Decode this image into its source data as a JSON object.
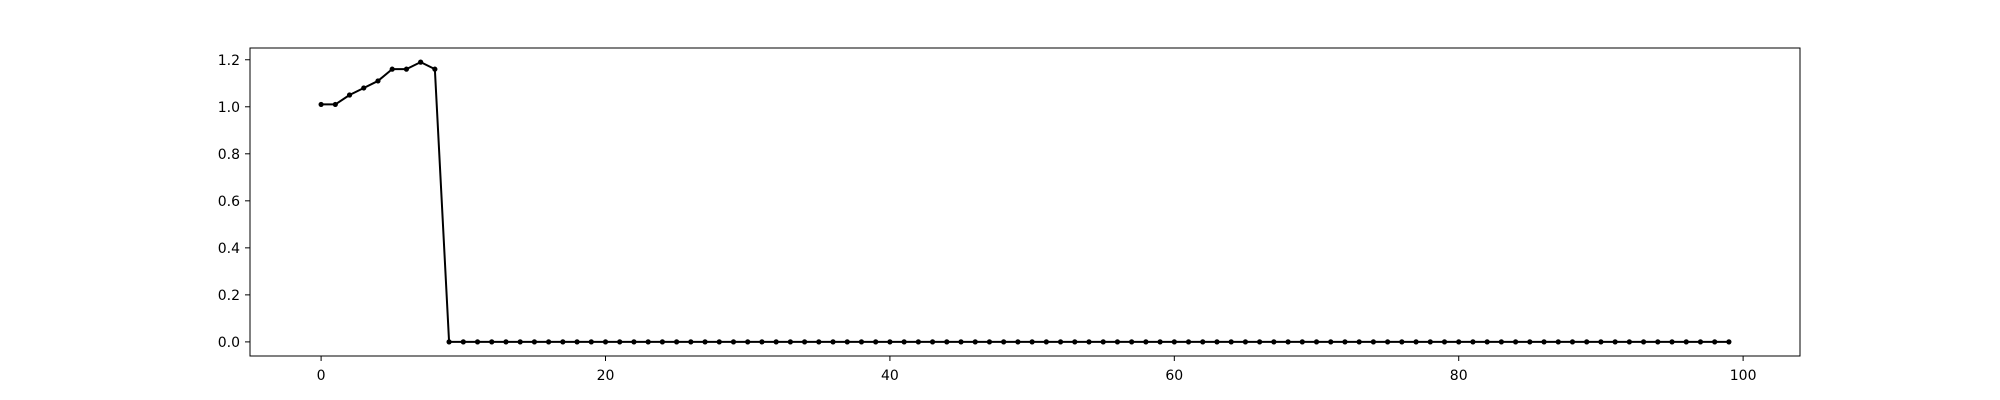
{
  "chart_data": {
    "type": "line",
    "title": "",
    "xlabel": "",
    "ylabel": "",
    "xlim": [
      -5,
      104
    ],
    "ylim": [
      -0.06,
      1.25
    ],
    "grid": false,
    "x_ticks": [
      0,
      20,
      40,
      60,
      80,
      100
    ],
    "x_tick_labels": [
      "0",
      "20",
      "40",
      "60",
      "80",
      "100"
    ],
    "y_ticks": [
      0.0,
      0.2,
      0.4,
      0.6,
      0.8,
      1.0,
      1.2
    ],
    "y_tick_labels": [
      "0.0",
      "0.2",
      "0.4",
      "0.6",
      "0.8",
      "1.0",
      "1.2"
    ],
    "series": [
      {
        "color": "#000000",
        "marker": "circle",
        "x": [
          0,
          1,
          2,
          3,
          4,
          5,
          6,
          7,
          8,
          9,
          10,
          11,
          12,
          13,
          14,
          15,
          16,
          17,
          18,
          19,
          20,
          21,
          22,
          23,
          24,
          25,
          26,
          27,
          28,
          29,
          30,
          31,
          32,
          33,
          34,
          35,
          36,
          37,
          38,
          39,
          40,
          41,
          42,
          43,
          44,
          45,
          46,
          47,
          48,
          49,
          50,
          51,
          52,
          53,
          54,
          55,
          56,
          57,
          58,
          59,
          60,
          61,
          62,
          63,
          64,
          65,
          66,
          67,
          68,
          69,
          70,
          71,
          72,
          73,
          74,
          75,
          76,
          77,
          78,
          79,
          80,
          81,
          82,
          83,
          84,
          85,
          86,
          87,
          88,
          89,
          90,
          91,
          92,
          93,
          94,
          95,
          96,
          97,
          98,
          99
        ],
        "y": [
          1.01,
          1.01,
          1.05,
          1.08,
          1.11,
          1.16,
          1.16,
          1.19,
          1.16,
          0,
          0,
          0,
          0,
          0,
          0,
          0,
          0,
          0,
          0,
          0,
          0,
          0,
          0,
          0,
          0,
          0,
          0,
          0,
          0,
          0,
          0,
          0,
          0,
          0,
          0,
          0,
          0,
          0,
          0,
          0,
          0,
          0,
          0,
          0,
          0,
          0,
          0,
          0,
          0,
          0,
          0,
          0,
          0,
          0,
          0,
          0,
          0,
          0,
          0,
          0,
          0,
          0,
          0,
          0,
          0,
          0,
          0,
          0,
          0,
          0,
          0,
          0,
          0,
          0,
          0,
          0,
          0,
          0,
          0,
          0,
          0,
          0,
          0,
          0,
          0,
          0,
          0,
          0,
          0,
          0,
          0,
          0,
          0,
          0,
          0,
          0,
          0,
          0,
          0,
          0
        ]
      }
    ]
  }
}
